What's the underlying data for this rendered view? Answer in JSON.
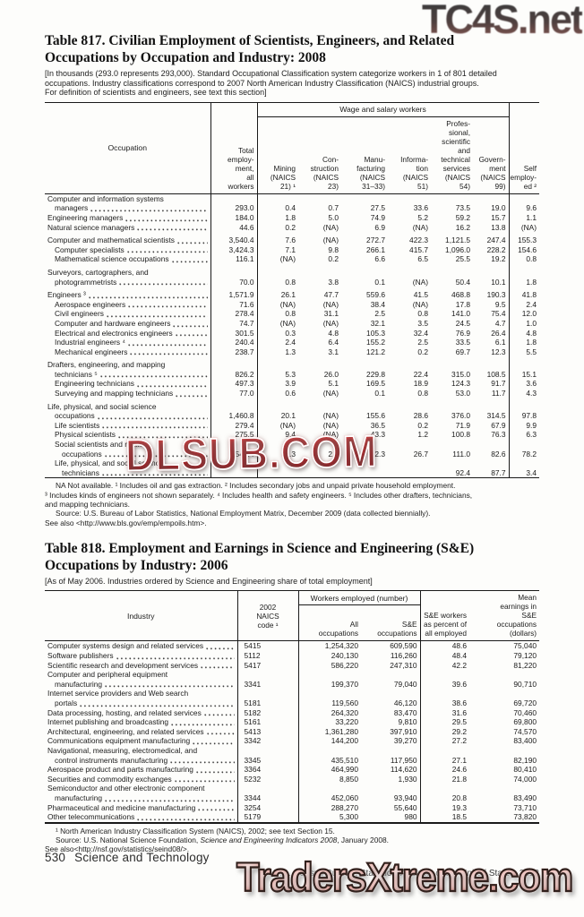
{
  "watermarks": {
    "top": "TC4S.net",
    "middle": "DLSUB.COM",
    "bottom": "TradersXtreme.com"
  },
  "table817": {
    "title": "Table 817. Civilian Employment of Scientists, Engineers, and Related\nOccupations by Occupation and Industry: 2008",
    "note": "[In thousands (293.0 represents 293,000). Standard Occupational Classification system categorize workers in 1 of 801 detailed\noccupations. Industry classifications correspond to 2007 North American Industry Classification (NAICS) industrial groups.\nFor definition of scientists and engineers, see text this section]",
    "spanner": "Wage and salary workers",
    "headers": {
      "occupation": "Occupation",
      "total": "Total\nemploy-\nment,\nall\nworkers",
      "self": "Self\nemploy-\ned ²",
      "wage_cols": [
        "Mining\n(NAICS\n21) ¹",
        "Con-\nstruction\n(NAICS\n23)",
        "Manu-\nfacturing\n(NAICS\n31–33)",
        "Informa-\ntion\n(NAICS\n51)",
        "Profes-\nsional,\nscientific\nand\ntechnical\nservices\n(NAICS\n54)",
        "Govern-\nment\n(NAICS\n99)"
      ]
    },
    "rows": [
      {
        "stub": [
          "Computer and information systems",
          "managers"
        ],
        "indent": 0,
        "gap": false,
        "values": [
          "293.0",
          "0.4",
          "0.7",
          "27.5",
          "33.6",
          "73.5",
          "19.0",
          "9.6"
        ]
      },
      {
        "stub": [
          "Engineering managers"
        ],
        "indent": 0,
        "gap": false,
        "values": [
          "184.0",
          "1.8",
          "5.0",
          "74.9",
          "5.2",
          "59.2",
          "15.7",
          "1.1"
        ]
      },
      {
        "stub": [
          "Natural science managers"
        ],
        "indent": 0,
        "gap": false,
        "values": [
          "44.6",
          "0.2",
          "(NA)",
          "6.9",
          "(NA)",
          "16.2",
          "13.8",
          "(NA)"
        ]
      },
      {
        "stub": [
          "Computer and mathematical scientists"
        ],
        "indent": 0,
        "gap": true,
        "values": [
          "3,540.4",
          "7.6",
          "(NA)",
          "272.7",
          "422.3",
          "1,121.5",
          "247.4",
          "155.3"
        ]
      },
      {
        "stub": [
          "Computer specialists"
        ],
        "indent": 1,
        "gap": false,
        "values": [
          "3,424.3",
          "7.1",
          "9.8",
          "266.1",
          "415.7",
          "1,096.0",
          "228.2",
          "154.6"
        ]
      },
      {
        "stub": [
          "Mathematical science occupations"
        ],
        "indent": 1,
        "gap": false,
        "values": [
          "116.1",
          "(NA)",
          "0.2",
          "6.6",
          "6.5",
          "25.5",
          "19.2",
          "0.8"
        ]
      },
      {
        "stub": [
          "Surveyors, cartographers, and",
          "photogrammetrists"
        ],
        "indent": 0,
        "gap": true,
        "values": [
          "70.0",
          "0.8",
          "3.8",
          "0.1",
          "(NA)",
          "50.4",
          "10.1",
          "1.8"
        ]
      },
      {
        "stub": [
          "Engineers ³"
        ],
        "indent": 0,
        "gap": true,
        "values": [
          "1,571.9",
          "26.1",
          "47.7",
          "559.6",
          "41.5",
          "468.8",
          "190.3",
          "41.8"
        ]
      },
      {
        "stub": [
          "Aerospace engineers"
        ],
        "indent": 1,
        "gap": false,
        "values": [
          "71.6",
          "(NA)",
          "(NA)",
          "38.4",
          "(NA)",
          "17.8",
          "9.5",
          "2.4"
        ]
      },
      {
        "stub": [
          "Civil engineers"
        ],
        "indent": 1,
        "gap": false,
        "values": [
          "278.4",
          "0.8",
          "31.1",
          "2.5",
          "0.8",
          "141.0",
          "75.4",
          "12.0"
        ]
      },
      {
        "stub": [
          "Computer and hardware engineers"
        ],
        "indent": 1,
        "gap": false,
        "values": [
          "74.7",
          "(NA)",
          "(NA)",
          "32.1",
          "3.5",
          "24.5",
          "4.7",
          "1.0"
        ]
      },
      {
        "stub": [
          "Electrical and electronics engineers"
        ],
        "indent": 1,
        "gap": false,
        "values": [
          "301.5",
          "0.3",
          "4.8",
          "105.3",
          "32.4",
          "76.9",
          "26.4",
          "4.8"
        ]
      },
      {
        "stub": [
          "Industrial engineers ⁴"
        ],
        "indent": 1,
        "gap": false,
        "values": [
          "240.4",
          "2.4",
          "6.4",
          "155.2",
          "2.5",
          "33.5",
          "6.1",
          "1.8"
        ]
      },
      {
        "stub": [
          "Mechanical engineers"
        ],
        "indent": 1,
        "gap": false,
        "values": [
          "238.7",
          "1.3",
          "3.1",
          "121.2",
          "0.2",
          "69.7",
          "12.3",
          "5.5"
        ]
      },
      {
        "stub": [
          "Drafters, engineering, and mapping",
          "technicians ⁵"
        ],
        "indent": 0,
        "gap": true,
        "values": [
          "826.2",
          "5.3",
          "26.0",
          "229.8",
          "22.4",
          "315.0",
          "108.5",
          "15.1"
        ]
      },
      {
        "stub": [
          "Engineering technicians"
        ],
        "indent": 1,
        "gap": false,
        "values": [
          "497.3",
          "3.9",
          "5.1",
          "169.5",
          "18.9",
          "124.3",
          "91.7",
          "3.6"
        ]
      },
      {
        "stub": [
          "Surveying and mapping technicians"
        ],
        "indent": 1,
        "gap": false,
        "values": [
          "77.0",
          "0.6",
          "(NA)",
          "0.1",
          "0.8",
          "53.0",
          "11.7",
          "4.3"
        ]
      },
      {
        "stub": [
          "Life, physical, and social science",
          "occupations"
        ],
        "indent": 0,
        "gap": true,
        "values": [
          "1,460.8",
          "20.1",
          "(NA)",
          "155.6",
          "28.6",
          "376.0",
          "314.5",
          "97.8"
        ]
      },
      {
        "stub": [
          "Life scientists"
        ],
        "indent": 1,
        "gap": false,
        "values": [
          "279.4",
          "(NA)",
          "(NA)",
          "36.5",
          "0.2",
          "71.9",
          "67.9",
          "9.9"
        ]
      },
      {
        "stub": [
          "Physical scientists"
        ],
        "indent": 1,
        "gap": false,
        "values": [
          "275.5",
          "9.4",
          "(NA)",
          "43.3",
          "1.2",
          "100.8",
          "76.3",
          "6.3"
        ]
      },
      {
        "stub": [
          "Social scientists and related",
          "occupations"
        ],
        "indent": 1,
        "gap": false,
        "values": [
          "549.4",
          "0.3",
          "2.6",
          "32.3",
          "26.7",
          "111.0",
          "82.6",
          "78.2"
        ]
      },
      {
        "stub": [
          "Life, physical, and social science",
          "technicians"
        ],
        "indent": 1,
        "gap": false,
        "values": [
          "",
          "",
          "",
          "",
          "",
          "92.4",
          "87.7",
          "3.4"
        ]
      }
    ],
    "footnotes": [
      {
        "indent": true,
        "text": "NA Not available. ¹ Includes oil and gas extraction. ² Includes secondary jobs and unpaid private household employment."
      },
      {
        "indent": false,
        "text": "³ Includes kinds of engineers not shown separately. ⁴ Includes health and safety engineers. ⁵ Includes other drafters, technicians,"
      },
      {
        "indent": false,
        "text": "and mapping technicians."
      },
      {
        "indent": true,
        "text": "Source: U.S. Bureau of Labor Statistics, National Employment Matrix, December 2009 (data collected biennially)."
      },
      {
        "indent": false,
        "text": "See also <http://www.bls.gov/emp/empoils.htm>."
      }
    ]
  },
  "table818": {
    "title": "Table 818. Employment and Earnings in Science and Engineering (S&E)\nOccupations by Industry: 2006",
    "note": "[As of May 2006. Industries ordered by Science and Engineering share of total employment]",
    "spanner": "Workers employed (number)",
    "headers": {
      "industry": "Industry",
      "naics": "2002\nNAICS\ncode ¹",
      "all": "All\noccupations",
      "se": "S&E\noccupations",
      "pct": "S&E workers\nas percent of\nall employed",
      "earnings": "Mean\nearnings in\nS&E\noccupations\n(dollars)"
    },
    "rows": [
      {
        "stub": [
          "Computer systems design and related services"
        ],
        "naics": "5415",
        "values": [
          "1,254,320",
          "609,590",
          "48.6",
          "75,040"
        ]
      },
      {
        "stub": [
          "Software publishers"
        ],
        "naics": "5112",
        "values": [
          "240,130",
          "116,260",
          "48.4",
          "79,120"
        ]
      },
      {
        "stub": [
          "Scientific research and development services"
        ],
        "naics": "5417",
        "values": [
          "586,220",
          "247,310",
          "42.2",
          "81,220"
        ]
      },
      {
        "stub": [
          "Computer and peripheral equipment",
          "manufacturing"
        ],
        "naics": "3341",
        "values": [
          "199,370",
          "79,040",
          "39.6",
          "90,710"
        ]
      },
      {
        "stub": [
          "Internet service providers and Web search",
          "portals"
        ],
        "naics": "5181",
        "values": [
          "119,560",
          "46,120",
          "38.6",
          "69,720"
        ]
      },
      {
        "stub": [
          "Data processing, hosting, and related services"
        ],
        "naics": "5182",
        "values": [
          "264,320",
          "83,470",
          "31.6",
          "70,460"
        ]
      },
      {
        "stub": [
          "Internet publishing and broadcasting"
        ],
        "naics": "5161",
        "values": [
          "33,220",
          "9,810",
          "29.5",
          "69,800"
        ]
      },
      {
        "stub": [
          "Architectural, engineering, and related services"
        ],
        "naics": "5413",
        "values": [
          "1,361,280",
          "397,910",
          "29.2",
          "74,570"
        ]
      },
      {
        "stub": [
          "Communications equipment manufacturing"
        ],
        "naics": "3342",
        "values": [
          "144,200",
          "39,270",
          "27.2",
          "83,400"
        ]
      },
      {
        "stub": [
          "Navigational, measuring, electromedical, and",
          "control instruments manufacturing"
        ],
        "naics": "3345",
        "values": [
          "435,510",
          "117,950",
          "27.1",
          "82,190"
        ]
      },
      {
        "stub": [
          "Aerospace product and parts manufacturing"
        ],
        "naics": "3364",
        "values": [
          "464,990",
          "114,620",
          "24.6",
          "80,410"
        ]
      },
      {
        "stub": [
          "Securities and commodity exchanges"
        ],
        "naics": "5232",
        "values": [
          "8,850",
          "1,930",
          "21.8",
          "74,000"
        ]
      },
      {
        "stub": [
          "Semiconductor and other electronic component",
          "manufacturing"
        ],
        "naics": "3344",
        "values": [
          "452,060",
          "93,940",
          "20.8",
          "83,490"
        ]
      },
      {
        "stub": [
          "Pharmaceutical and medicine manufacturing"
        ],
        "naics": "3254",
        "values": [
          "288,270",
          "55,640",
          "19.3",
          "73,710"
        ]
      },
      {
        "stub": [
          "Other telecommunications"
        ],
        "naics": "5179",
        "values": [
          "5,300",
          "980",
          "18.5",
          "73,820"
        ]
      }
    ],
    "footnotes": [
      {
        "indent": true,
        "text": "¹ North American Industry Classification System (NAICS), 2002; see text Section 15."
      },
      {
        "indent": true,
        "parts": [
          {
            "text": "Source: U.S. National Science Foundation, "
          },
          {
            "text": "Science and Engineering Indicators 2008",
            "italic": true
          },
          {
            "text": ", January 2008."
          }
        ]
      },
      {
        "indent": false,
        "text": "See also<http://nsf.gov/statistics/seind08/>."
      }
    ]
  },
  "footer": {
    "page_number": "530",
    "section_title": "Science and Technology",
    "source_line": "U.S. Census Bureau, Statistical Abstract of the United States: 2012"
  }
}
